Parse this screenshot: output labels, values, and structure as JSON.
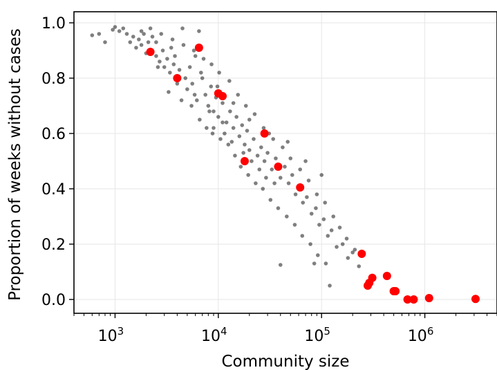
{
  "chart_data": {
    "type": "scatter",
    "title": "",
    "xlabel": "Community size",
    "ylabel": "Proportion of weeks without cases",
    "xscale": "log",
    "xlim": [
      400,
      5000000
    ],
    "ylim": [
      -0.05,
      1.04
    ],
    "grid": true,
    "legend": "none",
    "x_ticks": [
      {
        "base": "10",
        "exp": "3",
        "value": 1000
      },
      {
        "base": "10",
        "exp": "4",
        "value": 10000
      },
      {
        "base": "10",
        "exp": "5",
        "value": 100000
      },
      {
        "base": "10",
        "exp": "6",
        "value": 1000000
      }
    ],
    "y_ticks": [
      {
        "label": "0.0",
        "value": 0.0
      },
      {
        "label": "0.2",
        "value": 0.2
      },
      {
        "label": "0.4",
        "value": 0.4
      },
      {
        "label": "0.6",
        "value": 0.6
      },
      {
        "label": "0.8",
        "value": 0.8
      },
      {
        "label": "1.0",
        "value": 1.0
      }
    ],
    "series": [
      {
        "color": "#000000",
        "opacity": 0.5,
        "style": "small-dots",
        "points": [
          [
            600,
            0.955
          ],
          [
            700,
            0.96
          ],
          [
            800,
            0.93
          ],
          [
            950,
            0.975
          ],
          [
            1000,
            0.985
          ],
          [
            1100,
            0.97
          ],
          [
            1200,
            0.98
          ],
          [
            1300,
            0.96
          ],
          [
            1400,
            0.93
          ],
          [
            1500,
            0.95
          ],
          [
            1600,
            0.91
          ],
          [
            1700,
            0.94
          ],
          [
            1800,
            0.92
          ],
          [
            1900,
            0.96
          ],
          [
            2000,
            0.89
          ],
          [
            2100,
            0.93
          ],
          [
            2300,
            0.95
          ],
          [
            2500,
            0.88
          ],
          [
            2700,
            0.86
          ],
          [
            2900,
            0.9
          ],
          [
            3000,
            0.84
          ],
          [
            3200,
            0.87
          ],
          [
            3400,
            0.82
          ],
          [
            3500,
            0.91
          ],
          [
            3700,
            0.85
          ],
          [
            4000,
            0.78
          ],
          [
            4200,
            0.83
          ],
          [
            4500,
            0.98
          ],
          [
            4800,
            0.8
          ],
          [
            5000,
            0.76
          ],
          [
            5300,
            0.84
          ],
          [
            5600,
            0.78
          ],
          [
            6000,
            0.88
          ],
          [
            6500,
            0.97
          ],
          [
            6200,
            0.72
          ],
          [
            7000,
            0.8
          ],
          [
            7500,
            0.74
          ],
          [
            8000,
            0.7
          ],
          [
            8500,
            0.77
          ],
          [
            9000,
            0.68
          ],
          [
            9500,
            0.73
          ],
          [
            10000,
            0.66
          ],
          [
            11000,
            0.71
          ],
          [
            12000,
            0.64
          ],
          [
            13000,
            0.68
          ],
          [
            14000,
            0.62
          ],
          [
            15000,
            0.66
          ],
          [
            16000,
            0.59
          ],
          [
            17000,
            0.63
          ],
          [
            18000,
            0.56
          ],
          [
            19000,
            0.61
          ],
          [
            20000,
            0.54
          ],
          [
            22000,
            0.58
          ],
          [
            24000,
            0.52
          ],
          [
            26000,
            0.55
          ],
          [
            28000,
            0.5
          ],
          [
            30000,
            0.53
          ],
          [
            33000,
            0.47
          ],
          [
            36000,
            0.51
          ],
          [
            40000,
            0.44
          ],
          [
            44000,
            0.48
          ],
          [
            48000,
            0.42
          ],
          [
            52000,
            0.45
          ],
          [
            56000,
            0.38
          ],
          [
            60000,
            0.41
          ],
          [
            66000,
            0.35
          ],
          [
            72000,
            0.37
          ],
          [
            80000,
            0.31
          ],
          [
            88000,
            0.33
          ],
          [
            95000,
            0.27
          ],
          [
            105000,
            0.29
          ],
          [
            115000,
            0.23
          ],
          [
            125000,
            0.25
          ],
          [
            140000,
            0.19
          ],
          [
            160000,
            0.2
          ],
          [
            180000,
            0.15
          ],
          [
            200000,
            0.17
          ],
          [
            230000,
            0.12
          ],
          [
            2500,
            0.93
          ],
          [
            3300,
            0.75
          ],
          [
            4400,
            0.72
          ],
          [
            5500,
            0.7
          ],
          [
            6600,
            0.65
          ],
          [
            7700,
            0.62
          ],
          [
            8800,
            0.6
          ],
          [
            10500,
            0.58
          ],
          [
            12500,
            0.56
          ],
          [
            14500,
            0.52
          ],
          [
            16500,
            0.48
          ],
          [
            19500,
            0.45
          ],
          [
            23000,
            0.42
          ],
          [
            27000,
            0.4
          ],
          [
            32000,
            0.36
          ],
          [
            38000,
            0.33
          ],
          [
            46000,
            0.3
          ],
          [
            55000,
            0.27
          ],
          [
            65000,
            0.23
          ],
          [
            78000,
            0.2
          ],
          [
            92000,
            0.16
          ],
          [
            110000,
            0.13
          ],
          [
            1800,
            0.97
          ],
          [
            2200,
            0.98
          ],
          [
            2800,
            0.96
          ],
          [
            3600,
            0.94
          ],
          [
            4600,
            0.92
          ],
          [
            5800,
            0.9
          ],
          [
            7200,
            0.87
          ],
          [
            8600,
            0.85
          ],
          [
            10200,
            0.82
          ],
          [
            12800,
            0.79
          ],
          [
            15500,
            0.74
          ],
          [
            18500,
            0.7
          ],
          [
            22500,
            0.67
          ],
          [
            27500,
            0.62
          ],
          [
            34000,
            0.58
          ],
          [
            42000,
            0.55
          ],
          [
            50000,
            0.51
          ],
          [
            62000,
            0.47
          ],
          [
            75000,
            0.43
          ],
          [
            90000,
            0.38
          ],
          [
            108000,
            0.35
          ],
          [
            130000,
            0.3
          ],
          [
            150000,
            0.26
          ],
          [
            175000,
            0.22
          ],
          [
            210000,
            0.18
          ],
          [
            40000,
            0.125
          ],
          [
            85000,
            0.13
          ],
          [
            120000,
            0.05
          ],
          [
            9000,
            0.62
          ],
          [
            11500,
            0.6
          ],
          [
            13500,
            0.57
          ],
          [
            17500,
            0.53
          ],
          [
            21000,
            0.5
          ],
          [
            25000,
            0.47
          ],
          [
            29000,
            0.44
          ],
          [
            35000,
            0.42
          ],
          [
            3800,
            0.88
          ],
          [
            6800,
            0.82
          ],
          [
            9800,
            0.77
          ],
          [
            14000,
            0.71
          ],
          [
            20000,
            0.65
          ],
          [
            31000,
            0.6
          ],
          [
            47000,
            0.57
          ],
          [
            70000,
            0.5
          ],
          [
            100000,
            0.45
          ],
          [
            2600,
            0.84
          ],
          [
            4100,
            0.8
          ],
          [
            5900,
            0.74
          ],
          [
            8200,
            0.68
          ],
          [
            11000,
            0.64
          ]
        ]
      },
      {
        "color": "#ff0000",
        "opacity": 1.0,
        "style": "large-dots",
        "points": [
          [
            2200,
            0.895
          ],
          [
            4000,
            0.8
          ],
          [
            6500,
            0.91
          ],
          [
            10000,
            0.745
          ],
          [
            11000,
            0.735
          ],
          [
            18000,
            0.5
          ],
          [
            28000,
            0.6
          ],
          [
            38000,
            0.48
          ],
          [
            62000,
            0.405
          ],
          [
            245000,
            0.165
          ],
          [
            280000,
            0.05
          ],
          [
            290000,
            0.06
          ],
          [
            310000,
            0.078
          ],
          [
            430000,
            0.085
          ],
          [
            500000,
            0.03
          ],
          [
            520000,
            0.03
          ],
          [
            680000,
            0.0
          ],
          [
            780000,
            0.0
          ],
          [
            1100000,
            0.005
          ],
          [
            3100000,
            0.002
          ]
        ]
      }
    ]
  }
}
